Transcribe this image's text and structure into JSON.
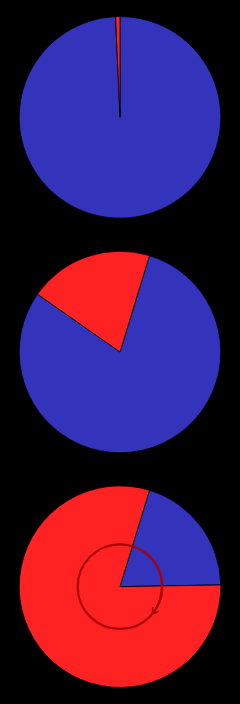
{
  "chart_data": [
    {
      "type": "pie",
      "values": [
        99.3,
        0.7
      ],
      "colors": [
        "#3333bb",
        "#ff2222"
      ]
    },
    {
      "type": "pie",
      "values": [
        80.0,
        20.0
      ],
      "colors": [
        "#3333bb",
        "#ff2222"
      ]
    },
    {
      "type": "pie",
      "values": [
        20.0,
        80.0
      ],
      "colors": [
        "#3333bb",
        "#ff2222"
      ]
    }
  ]
}
